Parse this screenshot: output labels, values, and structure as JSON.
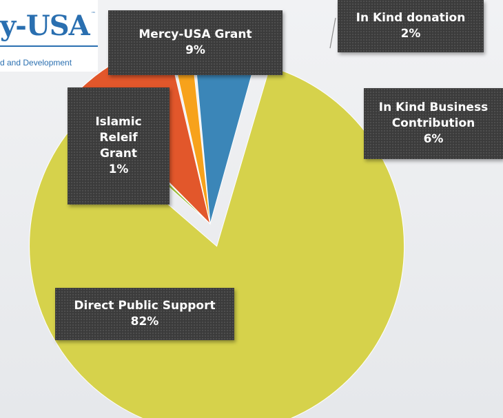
{
  "logo": {
    "text": "y-USA",
    "tagline": "d and Development"
  },
  "chart_data": {
    "type": "pie",
    "title": "",
    "slices": [
      {
        "label": "Direct Public Support",
        "value": 82,
        "display": "82%",
        "color": "#d6d24b",
        "exploded": true
      },
      {
        "label": "Islamic Releif Grant",
        "value": 1,
        "display": "1%",
        "color": "#9bbb3a",
        "exploded": false
      },
      {
        "label": "Mercy-USA Grant",
        "value": 9,
        "display": "9%",
        "color": "#e2572b",
        "exploded": false
      },
      {
        "label": "In Kind donation",
        "value": 2,
        "display": "2%",
        "color": "#f7a21b",
        "exploded": false
      },
      {
        "label": "In Kind Business Contribution",
        "value": 6,
        "display": "6%",
        "color": "#3b86b8",
        "exploded": false
      }
    ]
  }
}
